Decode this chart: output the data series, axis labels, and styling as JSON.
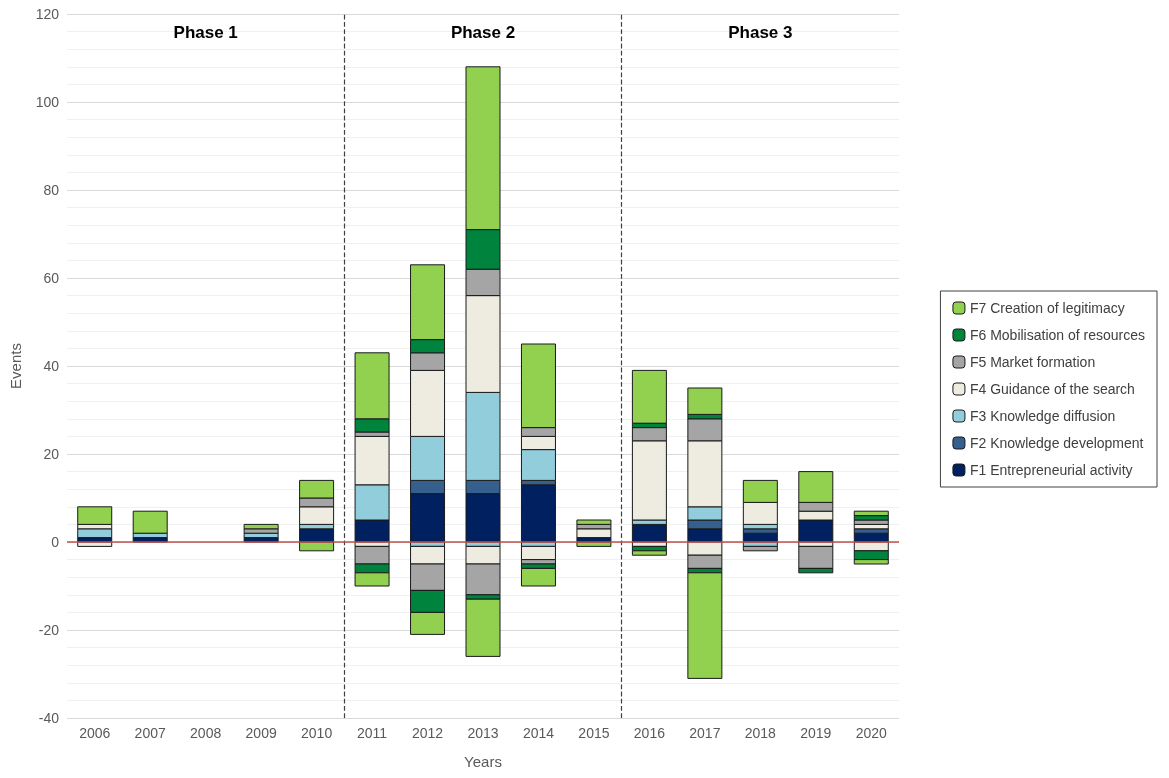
{
  "chart_data": {
    "type": "bar",
    "stacked": true,
    "xlabel": "Years",
    "ylabel": "Events",
    "x": [
      2006,
      2007,
      2008,
      2009,
      2010,
      2011,
      2012,
      2013,
      2014,
      2015,
      2016,
      2017,
      2018,
      2019,
      2020
    ],
    "xlim": [
      2005.5,
      2020.5
    ],
    "xticks": [
      2006,
      2007,
      2008,
      2009,
      2010,
      2011,
      2012,
      2013,
      2014,
      2015,
      2016,
      2017,
      2018,
      2019,
      2020
    ],
    "ylim": [
      -40,
      120
    ],
    "yticks": [
      -40,
      -20,
      0,
      20,
      40,
      60,
      80,
      100,
      120
    ],
    "grid": "y",
    "legend": "right",
    "series": [
      {
        "name": "F1 Entrepreneurial activity",
        "color": "#002060",
        "values": [
          1,
          1,
          null,
          1,
          3,
          5,
          11,
          11,
          13,
          1,
          4,
          3,
          2,
          5,
          2
        ]
      },
      {
        "name": "F2 Knowledge development",
        "color": "#355f8d",
        "values": [
          null,
          null,
          null,
          null,
          null,
          null,
          3,
          3,
          1,
          null,
          null,
          2,
          1,
          null,
          1
        ]
      },
      {
        "name": "F3 Knowledge diffusion",
        "color": "#92cddc",
        "values": [
          2,
          1,
          null,
          1,
          1,
          8,
          10,
          20,
          7,
          null,
          1,
          3,
          1,
          null,
          null
        ]
      },
      {
        "name": "F4 Guidance of the search",
        "color": "#eeece1",
        "values": [
          1,
          null,
          null,
          null,
          4,
          11,
          15,
          22,
          3,
          2,
          18,
          15,
          5,
          2,
          1
        ]
      },
      {
        "name": "F5 Market formation",
        "color": "#a5a5a5",
        "values": [
          null,
          null,
          null,
          1,
          2,
          1,
          4,
          6,
          2,
          1,
          3,
          5,
          null,
          2,
          1
        ]
      },
      {
        "name": "F6 Mobilisation of resources",
        "color": "#00843d",
        "values": [
          null,
          null,
          null,
          null,
          null,
          3,
          3,
          9,
          null,
          null,
          1,
          1,
          null,
          null,
          1
        ]
      },
      {
        "name": "F7 Creation of legitimacy",
        "color": "#92d050",
        "values": [
          4,
          5,
          null,
          1,
          4,
          15,
          17,
          37,
          19,
          1,
          12,
          6,
          5,
          7,
          1
        ]
      },
      {
        "color": "#92cddc",
        "values": [
          null,
          null,
          null,
          null,
          null,
          null,
          -1,
          -1,
          -1,
          null,
          null,
          null,
          -1,
          null,
          null
        ]
      },
      {
        "color": "#eeece1",
        "values": [
          -1,
          null,
          null,
          null,
          null,
          -1,
          -4,
          -4,
          -3,
          null,
          -1,
          -3,
          null,
          -1,
          -2
        ]
      },
      {
        "color": "#a5a5a5",
        "values": [
          null,
          null,
          null,
          null,
          null,
          -4,
          -6,
          -7,
          -1,
          null,
          null,
          -3,
          -1,
          -5,
          null
        ]
      },
      {
        "color": "#00843d",
        "values": [
          null,
          null,
          null,
          null,
          null,
          -2,
          -5,
          -1,
          -1,
          null,
          -1,
          -1,
          null,
          -1,
          -2
        ]
      },
      {
        "color": "#92d050",
        "values": [
          null,
          null,
          null,
          null,
          -2,
          -3,
          -5,
          -13,
          -4,
          -1,
          -1,
          -24,
          null,
          null,
          -1
        ]
      }
    ],
    "ref_lines": [
      {
        "axis": "x",
        "value": 2010.5,
        "color": "#404040",
        "line_style": "dashed"
      },
      {
        "axis": "x",
        "value": 2015.5,
        "color": "#404040",
        "line_style": "dashed"
      },
      {
        "axis": "y",
        "value": 0,
        "color": "#c0504d",
        "line_style": "solid"
      }
    ],
    "annotations": [
      "Phase 1",
      "Phase 2",
      "Phase 3"
    ]
  }
}
